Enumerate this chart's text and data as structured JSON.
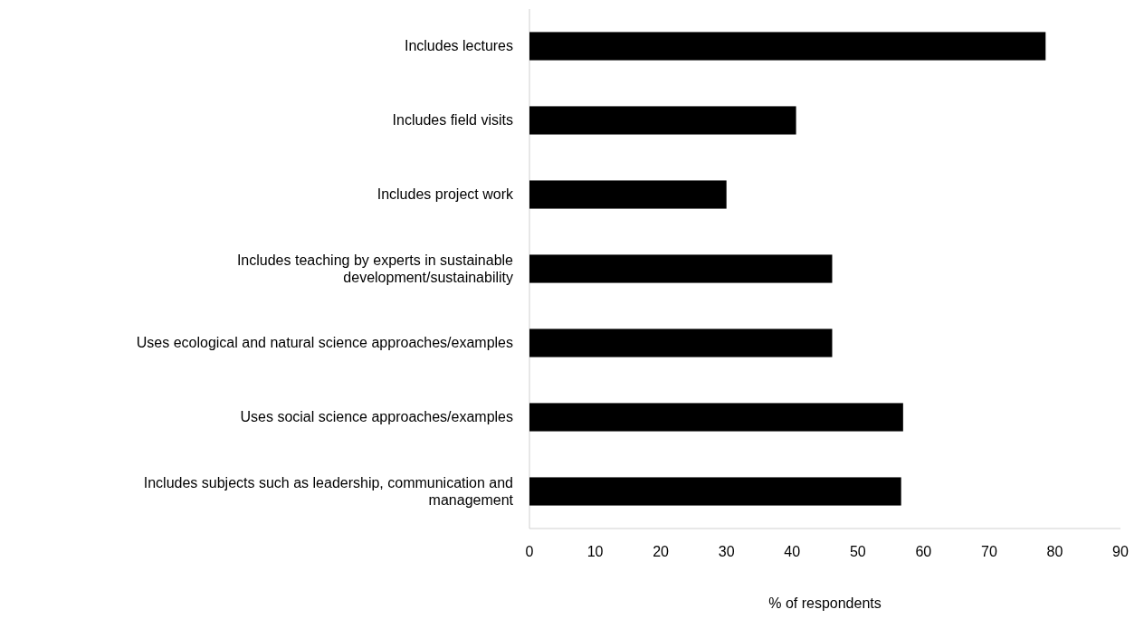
{
  "chart_data": {
    "type": "bar",
    "orientation": "horizontal",
    "xlabel": "% of respondents",
    "categories": [
      "Includes lectures",
      "Includes field visits",
      "Includes project work",
      "Includes teaching by experts in sustainable development/sustainability",
      "Uses ecological and natural science approaches/examples",
      "Uses social science approaches/examples",
      "Includes subjects such as leadership, communication and management"
    ],
    "values": [
      78.6,
      40.6,
      30,
      46.1,
      46.1,
      56.9,
      56.6
    ],
    "color": "#000000",
    "xlim": [
      0,
      90
    ],
    "xticks": [
      0,
      10,
      20,
      30,
      40,
      50,
      60,
      70,
      80,
      90
    ],
    "grid": false
  }
}
